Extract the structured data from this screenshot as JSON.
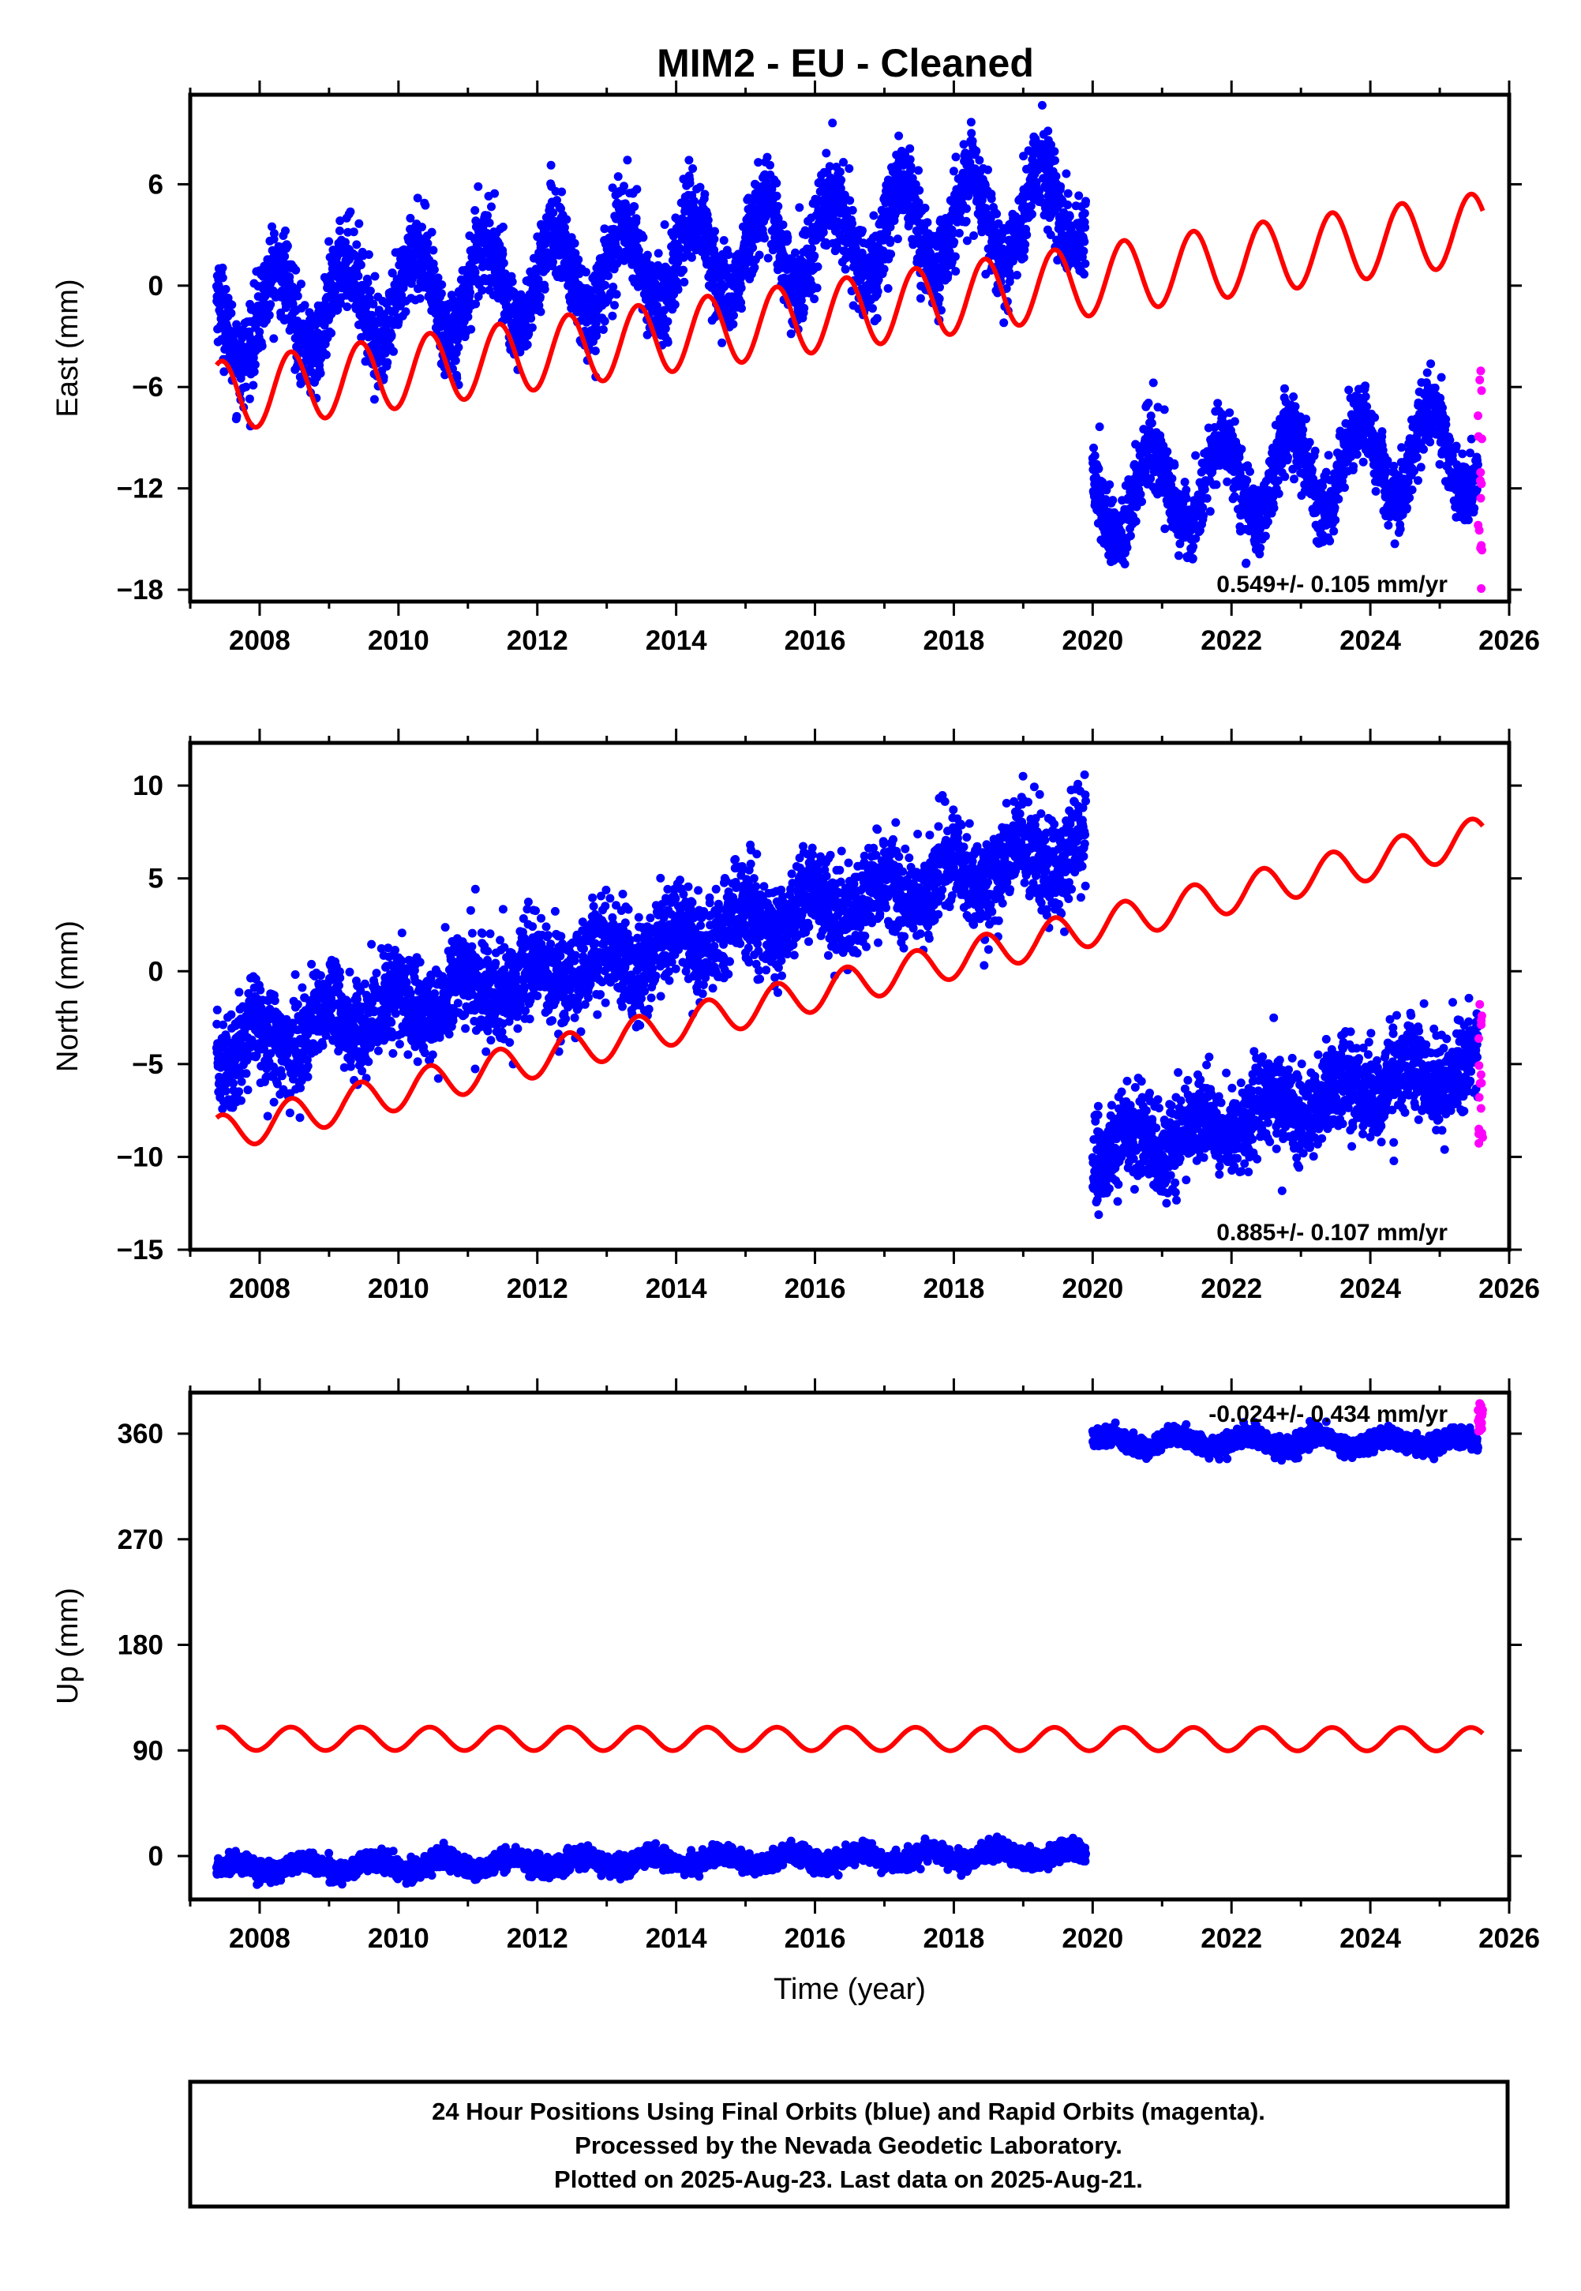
{
  "title": "MIM2  - EU - Cleaned",
  "colors": {
    "final": "#0000ff",
    "rapid": "#ff00ff",
    "model": "#ff0000",
    "frame": "#000000"
  },
  "footer": {
    "lines": [
      "24 Hour Positions Using Final Orbits (blue) and Rapid Orbits (magenta).",
      "Processed by the Nevada Geodetic Laboratory.",
      "Plotted on 2025-Aug-23. Last data on 2025-Aug-21."
    ]
  },
  "chart_data": [
    {
      "type": "scatter",
      "id": "east",
      "ylabel": "East (mm)",
      "xlabel": "",
      "xlim": [
        2007.0,
        2026.0
      ],
      "ylim": [
        -18.7,
        11.3
      ],
      "xticks": [
        2008,
        2010,
        2012,
        2014,
        2016,
        2018,
        2020,
        2022,
        2024,
        2026
      ],
      "yticks": [
        6,
        0,
        -6,
        -12,
        -18
      ],
      "rate_label": "0.549+/- 0.105 mm/yr",
      "final_segments": [
        {
          "start": 2007.38,
          "end": 2019.9,
          "offset": -2.1,
          "slope": 0.549,
          "amp": 2.6,
          "noise": 1.3
        },
        {
          "start": 2020.0,
          "end": 2025.55,
          "offset": -19.5,
          "slope": 0.549,
          "amp": 2.6,
          "noise": 1.1
        }
      ],
      "rapid": {
        "start": 2025.55,
        "end": 2025.62,
        "min": -18.0,
        "max": -4.6
      },
      "model": {
        "start": 2007.38,
        "end": 2025.62,
        "offset": -6.6,
        "slope": 0.549,
        "amp": 2.1
      }
    },
    {
      "type": "scatter",
      "id": "north",
      "ylabel": "North (mm)",
      "xlabel": "",
      "xlim": [
        2007.0,
        2026.0
      ],
      "ylim": [
        -15.0,
        12.3
      ],
      "xticks": [
        2008,
        2010,
        2012,
        2014,
        2016,
        2018,
        2020,
        2022,
        2024,
        2026
      ],
      "yticks": [
        10,
        5,
        0,
        -5,
        -10,
        -15
      ],
      "rate_label": "0.885+/- 0.107 mm/yr",
      "final_segments": [
        {
          "start": 2007.38,
          "end": 2019.9,
          "offset": -4.3,
          "slope": 0.885,
          "amp": 0.9,
          "noise": 1.3
        },
        {
          "start": 2020.0,
          "end": 2025.55,
          "offset": -21.0,
          "slope": 0.885,
          "amp": 0.8,
          "noise": 1.2
        }
      ],
      "rapid": {
        "start": 2025.55,
        "end": 2025.62,
        "min": -9.8,
        "max": -1.3
      },
      "model": {
        "start": 2007.38,
        "end": 2025.62,
        "offset": -8.8,
        "slope": 0.885,
        "amp": 1.0
      }
    },
    {
      "type": "scatter",
      "id": "up",
      "ylabel": "Up (mm)",
      "xlabel": "Time (year)",
      "xlim": [
        2007.0,
        2026.0
      ],
      "ylim": [
        -37,
        395
      ],
      "xticks": [
        2008,
        2010,
        2012,
        2014,
        2016,
        2018,
        2020,
        2022,
        2024,
        2026
      ],
      "yticks": [
        360,
        270,
        180,
        90,
        0
      ],
      "rate_label": "-0.024+/- 0.434 mm/yr",
      "final_segments": [
        {
          "start": 2007.38,
          "end": 2019.9,
          "offset": -10,
          "slope": 0.9,
          "amp": 5,
          "noise": 4
        },
        {
          "start": 2020.0,
          "end": 2025.55,
          "offset": 353,
          "slope": 0.0,
          "amp": 5,
          "noise": 4
        }
      ],
      "rapid": {
        "start": 2025.55,
        "end": 2025.62,
        "min": 362,
        "max": 388
      },
      "model": {
        "start": 2007.38,
        "end": 2025.62,
        "offset": 100,
        "slope": -0.024,
        "amp": 10
      }
    }
  ]
}
